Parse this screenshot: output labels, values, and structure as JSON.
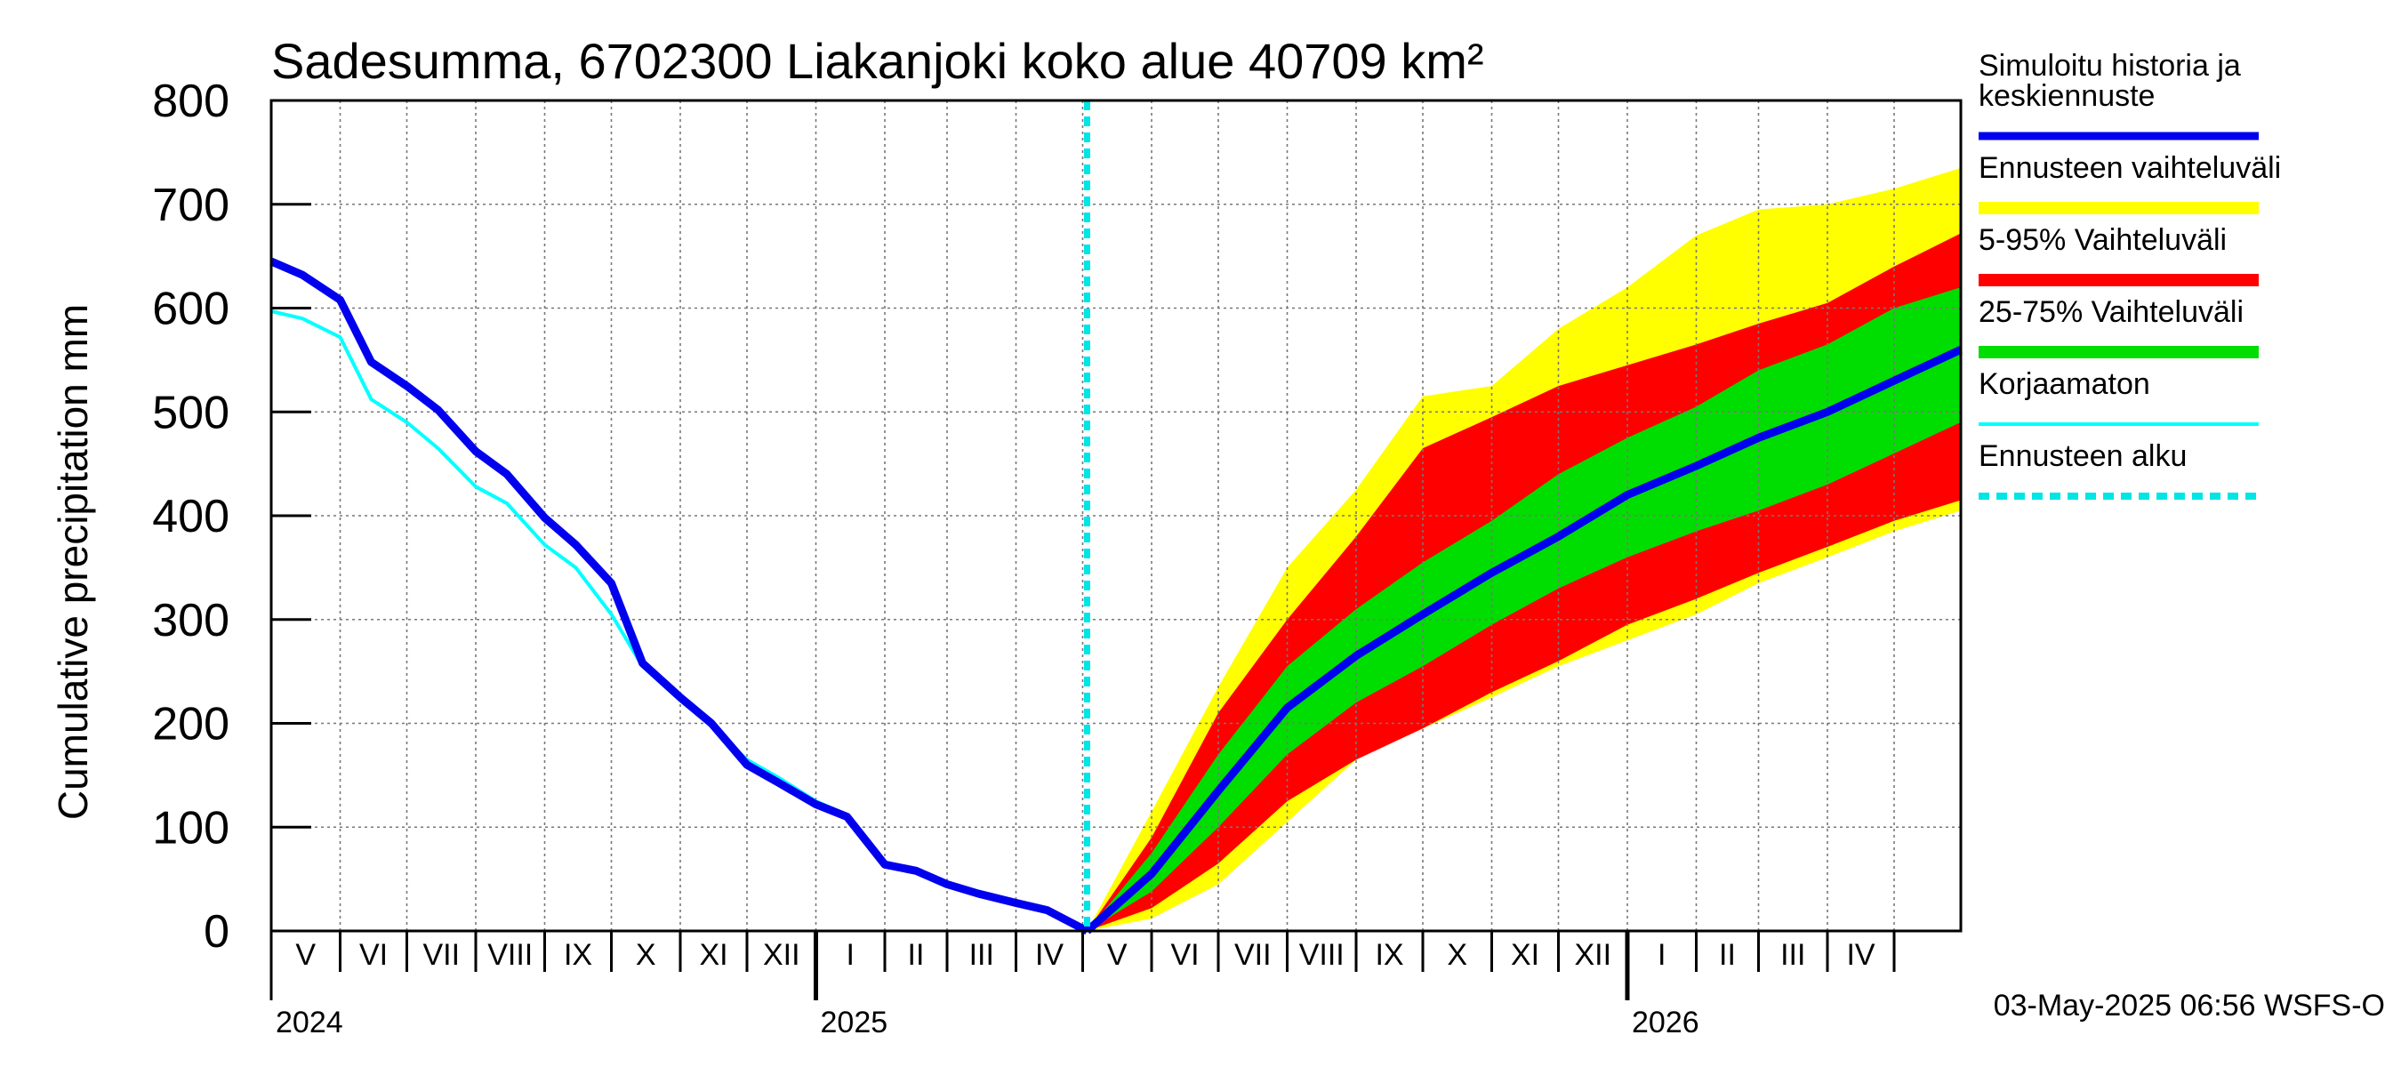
{
  "chart_data": {
    "type": "area",
    "title": "Sadesumma, 6702300 Liakanjoki koko alue 40709 km²",
    "ylabel": "Cumulative precipitation   mm",
    "xlabel": "",
    "ylim": [
      0,
      800
    ],
    "yticks": [
      0,
      100,
      200,
      300,
      400,
      500,
      600,
      700,
      800
    ],
    "grid": true,
    "legend_position": "right",
    "x_range": [
      "2024-05-01",
      "2026-05-31"
    ],
    "forecast_start": "2025-05-03",
    "month_labels": [
      "V",
      "VI",
      "VII",
      "VIII",
      "IX",
      "X",
      "XI",
      "XII",
      "I",
      "II",
      "III",
      "IV",
      "V",
      "VI",
      "VII",
      "VIII",
      "IX",
      "X",
      "XI",
      "XII",
      "I",
      "II",
      "III",
      "IV"
    ],
    "year_labels": [
      "2024",
      "2025",
      "2026"
    ],
    "footer": "03-May-2025 06:56 WSFS-O",
    "legend": [
      {
        "label": "Simuloitu historia ja keskiennuste",
        "color": "#0000ee",
        "style": "thick"
      },
      {
        "label": "Ennusteen vaihteluväli",
        "color": "#ffff00",
        "style": "band"
      },
      {
        "label": "5-95% Vaihteluväli",
        "color": "#ff0000",
        "style": "band"
      },
      {
        "label": "25-75% Vaihteluväli",
        "color": "#00dd00",
        "style": "band"
      },
      {
        "label": "Korjaamaton",
        "color": "#00ffff",
        "style": "thin"
      },
      {
        "label": "Ennusteen alku",
        "color": "#00e5e5",
        "style": "dashed"
      }
    ],
    "history_dates": [
      "2024-05-01",
      "2024-05-15",
      "2024-06-01",
      "2024-06-15",
      "2024-07-01",
      "2024-07-15",
      "2024-08-01",
      "2024-08-15",
      "2024-09-01",
      "2024-09-15",
      "2024-10-01",
      "2024-10-15",
      "2024-11-01",
      "2024-11-15",
      "2024-12-01",
      "2024-12-15",
      "2025-01-01",
      "2025-01-15",
      "2025-02-01",
      "2025-02-15",
      "2025-03-01",
      "2025-03-15",
      "2025-04-01",
      "2025-04-15",
      "2025-05-03"
    ],
    "simulated_history": [
      645,
      632,
      608,
      548,
      525,
      502,
      462,
      440,
      398,
      372,
      335,
      258,
      225,
      200,
      160,
      143,
      122,
      110,
      64,
      58,
      45,
      36,
      27,
      20,
      0
    ],
    "uncorrected": [
      597,
      590,
      572,
      512,
      490,
      465,
      428,
      412,
      372,
      350,
      305,
      255,
      222,
      198,
      165,
      148,
      125,
      112,
      66,
      60,
      47,
      38,
      29,
      22,
      0
    ],
    "forecast_dates": [
      "2025-05-03",
      "2025-06-01",
      "2025-07-01",
      "2025-08-01",
      "2025-09-01",
      "2025-10-01",
      "2025-11-01",
      "2025-12-01",
      "2026-01-01",
      "2026-02-01",
      "2026-03-01",
      "2026-04-01",
      "2026-05-01",
      "2026-05-31"
    ],
    "forecast_median": [
      0,
      55,
      135,
      215,
      265,
      305,
      345,
      380,
      420,
      448,
      475,
      500,
      530,
      560
    ],
    "p25": [
      0,
      38,
      100,
      170,
      220,
      255,
      295,
      330,
      360,
      385,
      405,
      430,
      460,
      490
    ],
    "p75": [
      0,
      75,
      170,
      255,
      310,
      355,
      395,
      440,
      475,
      505,
      540,
      565,
      600,
      620
    ],
    "p5": [
      0,
      22,
      65,
      125,
      165,
      195,
      230,
      260,
      295,
      320,
      345,
      370,
      395,
      415
    ],
    "p95": [
      0,
      90,
      210,
      300,
      380,
      465,
      495,
      525,
      545,
      565,
      585,
      605,
      640,
      672
    ],
    "min": [
      0,
      12,
      45,
      105,
      165,
      195,
      225,
      255,
      280,
      305,
      335,
      360,
      385,
      405
    ],
    "max": [
      0,
      115,
      235,
      350,
      425,
      515,
      525,
      580,
      620,
      670,
      695,
      700,
      715,
      735
    ]
  }
}
